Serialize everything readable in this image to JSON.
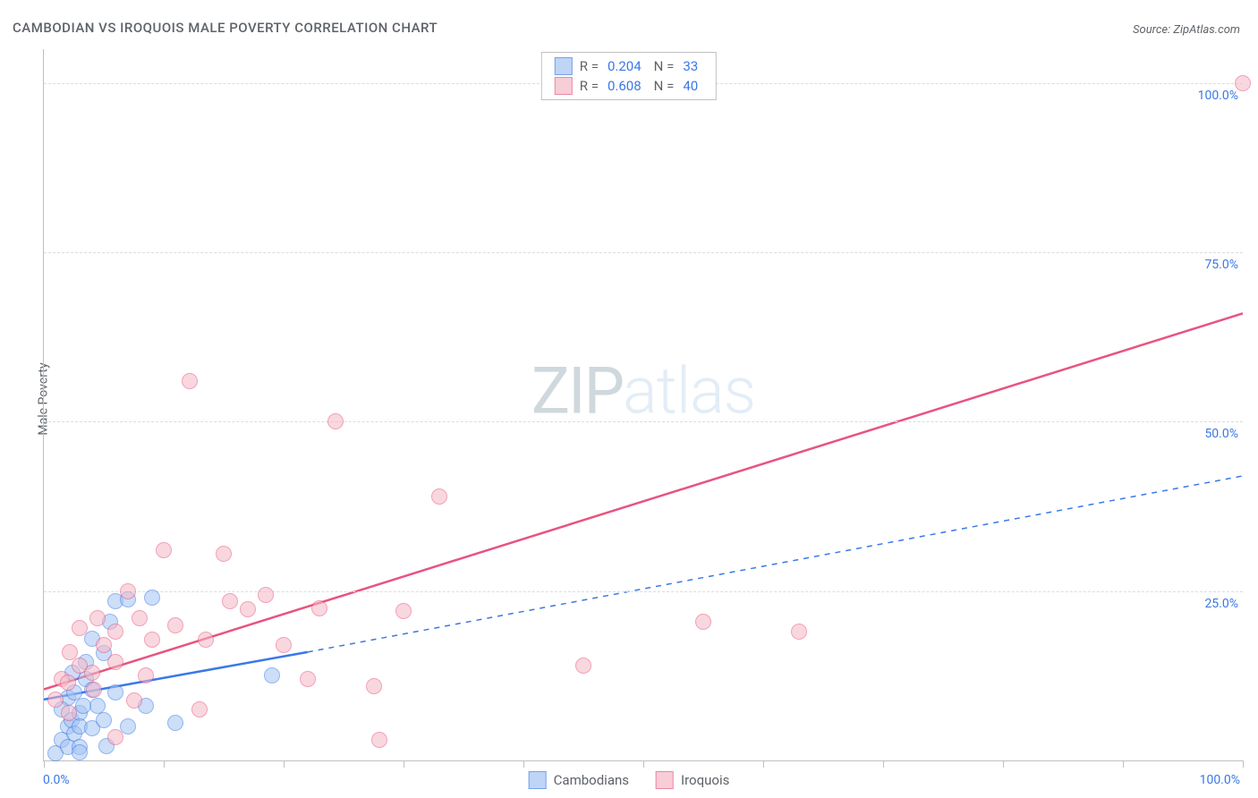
{
  "title": "CAMBODIAN VS IROQUOIS MALE POVERTY CORRELATION CHART",
  "source_label": "Source: ZipAtlas.com",
  "yaxis_title": "Male Poverty",
  "chart": {
    "type": "scatter",
    "xlim": [
      0,
      100
    ],
    "ylim": [
      0,
      105
    ],
    "x_tick_positions": [
      0,
      10,
      20,
      30,
      40,
      50,
      60,
      70,
      80,
      90,
      100
    ],
    "y_grid": [
      25,
      50,
      75,
      100
    ],
    "y_tick_labels": [
      "25.0%",
      "50.0%",
      "75.0%",
      "100.0%"
    ],
    "x_min_label": "0.0%",
    "x_max_label": "100.0%",
    "background_color": "#ffffff",
    "grid_color": "#dadce0",
    "axis_color": "#c0c0c0",
    "tick_label_color": "#3b78e7",
    "axis_title_color": "#5f6368",
    "point_radius": 8,
    "point_stroke_width": 1,
    "regression_line_width": 2.5
  },
  "series": [
    {
      "name": "Cambodians",
      "fill": "#a3c4f3",
      "fill_opacity": 0.55,
      "stroke": "#3b78e7",
      "r_value": "0.204",
      "n_value": "33",
      "reg_start": [
        0,
        9
      ],
      "reg_end_solid": [
        22,
        16
      ],
      "reg_end_dash": [
        100,
        42
      ],
      "dash": true,
      "points": [
        [
          1,
          1
        ],
        [
          1.5,
          3
        ],
        [
          2,
          2
        ],
        [
          2,
          5
        ],
        [
          2.3,
          6
        ],
        [
          2,
          9.2
        ],
        [
          2.5,
          4
        ],
        [
          3,
          7
        ],
        [
          2.5,
          10
        ],
        [
          3,
          2
        ],
        [
          3.5,
          12
        ],
        [
          3.5,
          14.5
        ],
        [
          3,
          5
        ],
        [
          4,
          10.5
        ],
        [
          4.5,
          8
        ],
        [
          4,
          4.8
        ],
        [
          3,
          1.2
        ],
        [
          5,
          6
        ],
        [
          5,
          15.8
        ],
        [
          5.5,
          20.5
        ],
        [
          6,
          23.5
        ],
        [
          7,
          23.8
        ],
        [
          6,
          10
        ],
        [
          7,
          5
        ],
        [
          8.5,
          8
        ],
        [
          9,
          24
        ],
        [
          11,
          5.5
        ],
        [
          19,
          12.5
        ],
        [
          4,
          18
        ],
        [
          2.4,
          13
        ],
        [
          3.3,
          8
        ],
        [
          5.2,
          2.1
        ],
        [
          1.5,
          7.5
        ]
      ]
    },
    {
      "name": "Iroquois",
      "fill": "#f5b8c6",
      "fill_opacity": 0.55,
      "stroke": "#e75480",
      "r_value": "0.608",
      "n_value": "40",
      "reg_start": [
        0,
        10.5
      ],
      "reg_end_solid": [
        100,
        66
      ],
      "reg_end_dash": null,
      "dash": false,
      "points": [
        [
          1,
          9
        ],
        [
          1.5,
          12
        ],
        [
          2,
          11.5
        ],
        [
          3,
          14
        ],
        [
          2.2,
          16
        ],
        [
          4,
          13
        ],
        [
          5,
          17
        ],
        [
          4.5,
          21
        ],
        [
          6,
          19
        ],
        [
          6,
          3.5
        ],
        [
          7,
          25
        ],
        [
          8,
          21
        ],
        [
          7.5,
          8.8
        ],
        [
          9,
          17.8
        ],
        [
          10,
          31
        ],
        [
          11,
          20
        ],
        [
          12.2,
          56
        ],
        [
          13,
          7.5
        ],
        [
          13.5,
          17.8
        ],
        [
          15,
          30.5
        ],
        [
          15.5,
          23.5
        ],
        [
          17,
          22.3
        ],
        [
          18.5,
          24.5
        ],
        [
          20,
          17
        ],
        [
          22,
          12
        ],
        [
          23,
          22.5
        ],
        [
          24.3,
          50
        ],
        [
          27.5,
          11
        ],
        [
          28,
          3.1
        ],
        [
          30,
          22
        ],
        [
          33,
          39
        ],
        [
          45,
          14
        ],
        [
          55,
          20.5
        ],
        [
          63,
          19
        ],
        [
          100,
          100
        ],
        [
          3,
          19.5
        ],
        [
          2.1,
          7
        ],
        [
          4.2,
          10.4
        ],
        [
          8.5,
          12.5
        ],
        [
          6,
          14.5
        ]
      ]
    }
  ],
  "legend_top": {
    "r_label": "R =",
    "n_label": "N ="
  },
  "legend_bottom": {
    "items": [
      "Cambodians",
      "Iroquois"
    ]
  },
  "watermark": {
    "part1": "ZIP",
    "part2": "atlas"
  }
}
